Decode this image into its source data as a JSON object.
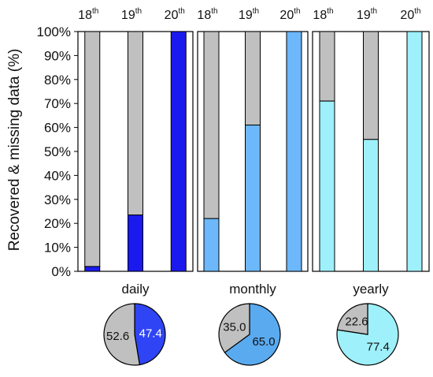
{
  "chart_data": {
    "type": "bar",
    "ylabel": "Recovered & missing data (%)",
    "ylim": [
      0,
      100
    ],
    "y_ticks": [
      "0%",
      "10%",
      "20%",
      "30%",
      "40%",
      "50%",
      "60%",
      "70%",
      "80%",
      "90%",
      "100%"
    ],
    "categories": [
      {
        "base": "18",
        "sup": "th"
      },
      {
        "base": "19",
        "sup": "th"
      },
      {
        "base": "20",
        "sup": "th"
      }
    ],
    "missing_color": "#c0c0c0",
    "panels": [
      {
        "name": "daily",
        "color": "#1a1aee",
        "recovered": [
          2,
          23.5,
          100
        ],
        "pie": {
          "missing": 52.6,
          "recovered": 47.4,
          "missing_label": "52.6",
          "recovered_label": "47.4",
          "pie_color": "#2f44f5"
        }
      },
      {
        "name": "monthly",
        "color": "#6cb8fa",
        "recovered": [
          22,
          61,
          100
        ],
        "pie": {
          "missing": 35.0,
          "recovered": 65.0,
          "missing_label": "35.0",
          "recovered_label": "65.0",
          "pie_color": "#5aaaf0"
        }
      },
      {
        "name": "yearly",
        "color": "#9ef0fb",
        "recovered": [
          71,
          55,
          100
        ],
        "pie": {
          "missing": 22.6,
          "recovered": 77.4,
          "missing_label": "22.6",
          "recovered_label": "77.4",
          "pie_color": "#9ef0fb"
        }
      }
    ]
  }
}
